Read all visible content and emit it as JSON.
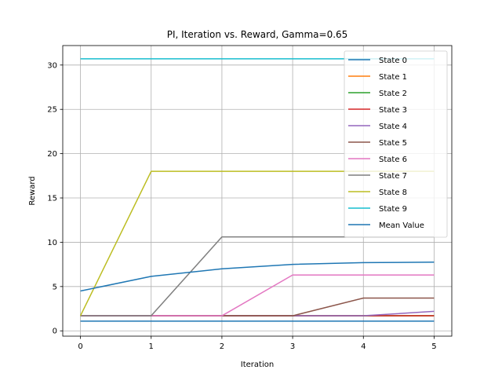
{
  "chart_data": {
    "type": "line",
    "title": "PI, Iteration vs. Reward, Gamma=0.65",
    "xlabel": "Iteration",
    "ylabel": "Reward",
    "x": [
      0,
      1,
      2,
      3,
      4,
      5
    ],
    "xlim": [
      -0.25,
      5.25
    ],
    "ylim": [
      -0.6,
      32.2
    ],
    "xticks": [
      "0",
      "1",
      "2",
      "3",
      "4",
      "5"
    ],
    "yticks": [
      "0",
      "5",
      "10",
      "15",
      "20",
      "25",
      "30"
    ],
    "grid": true,
    "legend_position": "top-right",
    "series": [
      {
        "name": "State 0",
        "color": "#1f77b4",
        "values": [
          1.1,
          1.1,
          1.1,
          1.1,
          1.1,
          1.1
        ]
      },
      {
        "name": "State 1",
        "color": "#ff7f0e",
        "values": [
          1.7,
          1.7,
          1.7,
          1.7,
          1.7,
          1.7
        ]
      },
      {
        "name": "State 2",
        "color": "#2ca02c",
        "values": [
          1.7,
          1.7,
          1.7,
          1.7,
          1.7,
          1.7
        ]
      },
      {
        "name": "State 3",
        "color": "#d62728",
        "values": [
          1.7,
          1.7,
          1.7,
          1.7,
          1.7,
          1.7
        ]
      },
      {
        "name": "State 4",
        "color": "#9467bd",
        "values": [
          1.7,
          1.7,
          1.7,
          1.7,
          1.7,
          2.2
        ]
      },
      {
        "name": "State 5",
        "color": "#8c564b",
        "values": [
          1.7,
          1.7,
          1.7,
          1.7,
          3.7,
          3.7
        ]
      },
      {
        "name": "State 6",
        "color": "#e377c2",
        "values": [
          1.7,
          1.7,
          1.7,
          6.3,
          6.3,
          6.3
        ]
      },
      {
        "name": "State 7",
        "color": "#7f7f7f",
        "values": [
          1.7,
          1.7,
          10.6,
          10.6,
          10.6,
          10.6
        ]
      },
      {
        "name": "State 8",
        "color": "#bcbd22",
        "values": [
          1.7,
          18.0,
          18.0,
          18.0,
          18.0,
          18.0
        ]
      },
      {
        "name": "State 9",
        "color": "#17becf",
        "values": [
          30.7,
          30.7,
          30.7,
          30.7,
          30.7,
          30.7
        ]
      },
      {
        "name": "Mean Value",
        "color": "#1f77b4",
        "values": [
          4.5,
          6.15,
          7.0,
          7.5,
          7.7,
          7.75
        ]
      }
    ]
  }
}
